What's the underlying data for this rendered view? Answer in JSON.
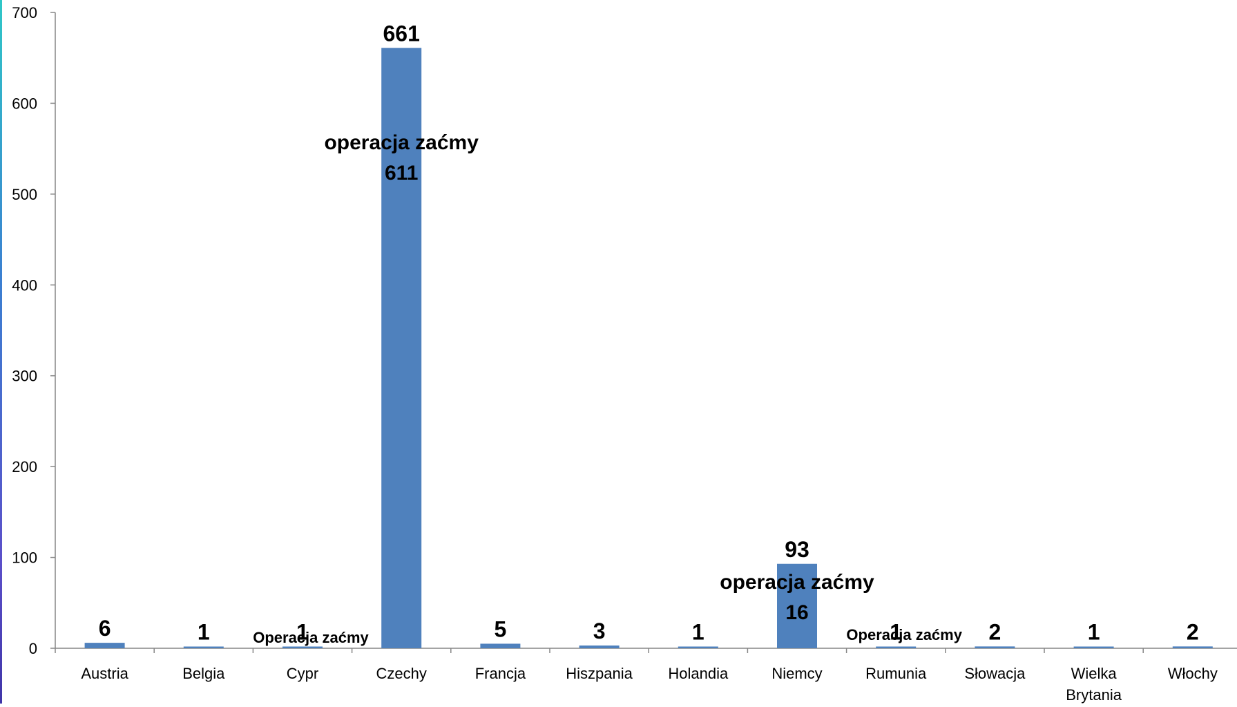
{
  "chart_data": {
    "type": "bar",
    "title": "",
    "xlabel": "",
    "ylabel": "",
    "ylim": [
      0,
      700
    ],
    "yticks": [
      0,
      100,
      200,
      300,
      400,
      500,
      600,
      700
    ],
    "grid": false,
    "legend": "none",
    "bar_color": "#4f81bd",
    "categories": [
      "Austria",
      "Belgia",
      "Cypr",
      "Czechy",
      "Francja",
      "Hiszpania",
      "Holandia",
      "Niemcy",
      "Rumunia",
      "Słowacja",
      [
        "Wielka",
        "Brytania"
      ],
      "Włochy"
    ],
    "values": [
      6,
      1,
      1,
      661,
      5,
      3,
      1,
      93,
      1,
      2,
      1,
      2
    ],
    "data_labels": [
      "6",
      "1",
      "1",
      "661",
      "5",
      "3",
      "1",
      "93",
      "1",
      "2",
      "1",
      "2"
    ],
    "annotations": [
      {
        "category_index": 2,
        "lines": [
          "Operacja zaćmy"
        ],
        "style": "small"
      },
      {
        "category_index": 3,
        "lines": [
          "operacja zaćmy",
          "611"
        ],
        "style": "big"
      },
      {
        "category_index": 7,
        "lines": [
          "operacja zaćmy",
          "16"
        ],
        "style": "big"
      },
      {
        "category_index": 8,
        "lines": [
          "Operacja zaćmy"
        ],
        "style": "small"
      }
    ]
  }
}
